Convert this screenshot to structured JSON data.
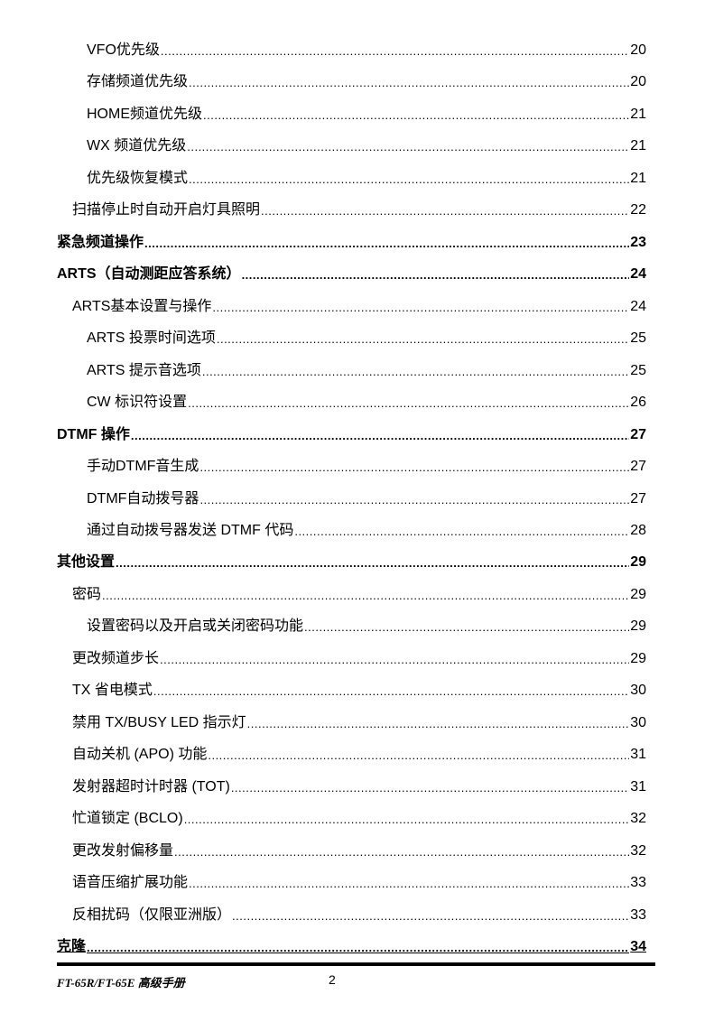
{
  "toc": [
    {
      "title": "VFO优先级",
      "page": "20",
      "level": 3
    },
    {
      "title": "存储频道优先级",
      "page": "20",
      "level": 3
    },
    {
      "title": "HOME频道优先级",
      "page": "21",
      "level": 3
    },
    {
      "title": "WX 频道优先级",
      "page": "21",
      "level": 3
    },
    {
      "title": "优先级恢复模式",
      "page": "21",
      "level": 3
    },
    {
      "title": "扫描停止时自动开启灯具照明",
      "page": "22",
      "level": 2
    },
    {
      "title": "紧急频道操作",
      "page": "23",
      "level": 1
    },
    {
      "title": "ARTS（自动测距应答系统）",
      "page": "24",
      "level": 1
    },
    {
      "title": "ARTS基本设置与操作",
      "page": "24",
      "level": 2
    },
    {
      "title": "ARTS 投票时间选项",
      "page": "25",
      "level": 3
    },
    {
      "title": "ARTS 提示音选项",
      "page": "25",
      "level": 3
    },
    {
      "title": "CW 标识符设置",
      "page": "26",
      "level": 3
    },
    {
      "title": "DTMF 操作",
      "page": "27",
      "level": 1
    },
    {
      "title": "手动DTMF音生成",
      "page": "27",
      "level": 3
    },
    {
      "title": "DTMF自动拨号器",
      "page": "27",
      "level": 3
    },
    {
      "title": "通过自动拨号器发送 DTMF 代码",
      "page": "28",
      "level": 3
    },
    {
      "title": "其他设置",
      "page": "29",
      "level": 1
    },
    {
      "title": "密码",
      "page": "29",
      "level": 2
    },
    {
      "title": "设置密码以及开启或关闭密码功能",
      "page": "29",
      "level": 3
    },
    {
      "title": "更改频道步长",
      "page": "29",
      "level": 2
    },
    {
      "title": "TX 省电模式",
      "page": "30",
      "level": 2
    },
    {
      "title": "禁用 TX/BUSY LED 指示灯",
      "page": "30",
      "level": 2
    },
    {
      "title": "自动关机 (APO) 功能",
      "page": "31",
      "level": 2
    },
    {
      "title": "发射器超时计时器 (TOT)",
      "page": "31",
      "level": 2
    },
    {
      "title": "忙道锁定 (BCLO)",
      "page": "32",
      "level": 2
    },
    {
      "title": "更改发射偏移量",
      "page": "32",
      "level": 2
    },
    {
      "title": "语音压缩扩展功能",
      "page": "33",
      "level": 2
    },
    {
      "title": "反相扰码（仅限亚洲版）",
      "page": "33",
      "level": 2
    },
    {
      "title": "克隆",
      "page": "34",
      "level": 1
    }
  ],
  "footer": {
    "title": "FT-65R/FT-65E 高级手册",
    "page": "2"
  }
}
